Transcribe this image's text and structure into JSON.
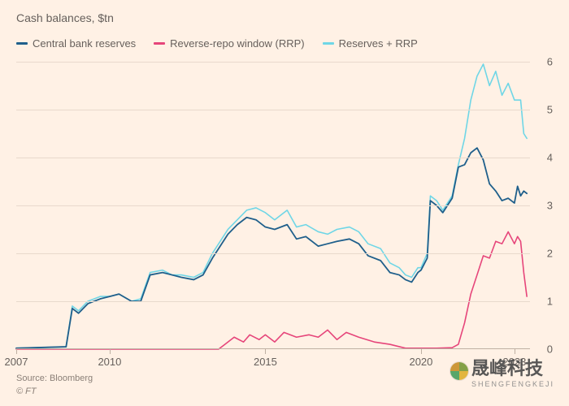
{
  "header": {
    "subtitle": "Cash balances, $tn"
  },
  "legend": {
    "items": [
      {
        "label": "Central bank reserves",
        "color": "#1f5f8b"
      },
      {
        "label": "Reverse-repo window (RRP)",
        "color": "#e6457a"
      },
      {
        "label": "Reserves + RRP",
        "color": "#6fd6e6"
      }
    ]
  },
  "chart": {
    "type": "line",
    "background_color": "#fff1e5",
    "grid_color": "#e8d9cc",
    "baseline_color": "#bfb0a3",
    "text_color": "#66605c",
    "font_family": "Arial, sans-serif",
    "label_fontsize": 13,
    "line_width": 1.6,
    "xlim": [
      2007,
      2023.5
    ],
    "ylim": [
      0,
      6
    ],
    "ytick_step": 1,
    "yticks": [
      0,
      1,
      2,
      3,
      4,
      5,
      6
    ],
    "xticks": [
      2007,
      2010,
      2015,
      2020,
      2023
    ],
    "series": [
      {
        "name": "reserves_plus_rrp",
        "color": "#6fd6e6",
        "width": 1.6,
        "data": [
          [
            2007,
            0.02
          ],
          [
            2008.6,
            0.05
          ],
          [
            2008.8,
            0.9
          ],
          [
            2009.0,
            0.8
          ],
          [
            2009.3,
            1.0
          ],
          [
            2009.7,
            1.1
          ],
          [
            2010.0,
            1.1
          ],
          [
            2010.3,
            1.15
          ],
          [
            2010.7,
            1.0
          ],
          [
            2011.0,
            1.05
          ],
          [
            2011.3,
            1.6
          ],
          [
            2011.7,
            1.65
          ],
          [
            2012.0,
            1.55
          ],
          [
            2012.3,
            1.55
          ],
          [
            2012.7,
            1.5
          ],
          [
            2013.0,
            1.6
          ],
          [
            2013.3,
            2.0
          ],
          [
            2013.5,
            2.2
          ],
          [
            2013.8,
            2.5
          ],
          [
            2014.1,
            2.7
          ],
          [
            2014.4,
            2.9
          ],
          [
            2014.7,
            2.95
          ],
          [
            2015.0,
            2.85
          ],
          [
            2015.3,
            2.7
          ],
          [
            2015.7,
            2.9
          ],
          [
            2016.0,
            2.55
          ],
          [
            2016.3,
            2.6
          ],
          [
            2016.7,
            2.45
          ],
          [
            2017.0,
            2.4
          ],
          [
            2017.3,
            2.5
          ],
          [
            2017.7,
            2.55
          ],
          [
            2018.0,
            2.45
          ],
          [
            2018.3,
            2.2
          ],
          [
            2018.7,
            2.1
          ],
          [
            2019.0,
            1.8
          ],
          [
            2019.3,
            1.7
          ],
          [
            2019.5,
            1.55
          ],
          [
            2019.7,
            1.5
          ],
          [
            2019.9,
            1.7
          ],
          [
            2020.0,
            1.7
          ],
          [
            2020.2,
            2.0
          ],
          [
            2020.3,
            3.2
          ],
          [
            2020.5,
            3.1
          ],
          [
            2020.7,
            2.9
          ],
          [
            2021.0,
            3.2
          ],
          [
            2021.2,
            3.85
          ],
          [
            2021.4,
            4.4
          ],
          [
            2021.6,
            5.2
          ],
          [
            2021.8,
            5.7
          ],
          [
            2022.0,
            5.95
          ],
          [
            2022.2,
            5.5
          ],
          [
            2022.4,
            5.8
          ],
          [
            2022.6,
            5.3
          ],
          [
            2022.8,
            5.55
          ],
          [
            2023.0,
            5.2
          ],
          [
            2023.2,
            5.2
          ],
          [
            2023.3,
            4.5
          ],
          [
            2023.4,
            4.4
          ]
        ]
      },
      {
        "name": "central_bank_reserves",
        "color": "#1f5f8b",
        "width": 1.8,
        "data": [
          [
            2007,
            0.02
          ],
          [
            2008.6,
            0.05
          ],
          [
            2008.8,
            0.85
          ],
          [
            2009.0,
            0.75
          ],
          [
            2009.3,
            0.95
          ],
          [
            2009.7,
            1.05
          ],
          [
            2010.0,
            1.1
          ],
          [
            2010.3,
            1.15
          ],
          [
            2010.7,
            1.0
          ],
          [
            2011.0,
            1.0
          ],
          [
            2011.3,
            1.55
          ],
          [
            2011.7,
            1.6
          ],
          [
            2012.0,
            1.55
          ],
          [
            2012.3,
            1.5
          ],
          [
            2012.7,
            1.45
          ],
          [
            2013.0,
            1.55
          ],
          [
            2013.3,
            1.9
          ],
          [
            2013.5,
            2.1
          ],
          [
            2013.8,
            2.4
          ],
          [
            2014.1,
            2.6
          ],
          [
            2014.4,
            2.75
          ],
          [
            2014.7,
            2.7
          ],
          [
            2015.0,
            2.55
          ],
          [
            2015.3,
            2.5
          ],
          [
            2015.7,
            2.6
          ],
          [
            2016.0,
            2.3
          ],
          [
            2016.3,
            2.35
          ],
          [
            2016.7,
            2.15
          ],
          [
            2017.0,
            2.2
          ],
          [
            2017.3,
            2.25
          ],
          [
            2017.7,
            2.3
          ],
          [
            2018.0,
            2.2
          ],
          [
            2018.3,
            1.95
          ],
          [
            2018.7,
            1.85
          ],
          [
            2019.0,
            1.6
          ],
          [
            2019.3,
            1.55
          ],
          [
            2019.5,
            1.45
          ],
          [
            2019.7,
            1.4
          ],
          [
            2019.9,
            1.6
          ],
          [
            2020.0,
            1.65
          ],
          [
            2020.2,
            1.9
          ],
          [
            2020.3,
            3.1
          ],
          [
            2020.5,
            3.0
          ],
          [
            2020.7,
            2.85
          ],
          [
            2021.0,
            3.15
          ],
          [
            2021.2,
            3.8
          ],
          [
            2021.4,
            3.85
          ],
          [
            2021.6,
            4.1
          ],
          [
            2021.8,
            4.2
          ],
          [
            2022.0,
            3.95
          ],
          [
            2022.2,
            3.45
          ],
          [
            2022.4,
            3.3
          ],
          [
            2022.6,
            3.1
          ],
          [
            2022.8,
            3.15
          ],
          [
            2023.0,
            3.05
          ],
          [
            2023.1,
            3.4
          ],
          [
            2023.2,
            3.2
          ],
          [
            2023.3,
            3.3
          ],
          [
            2023.4,
            3.25
          ]
        ]
      },
      {
        "name": "reverse_repo_rrp",
        "color": "#e6457a",
        "width": 1.6,
        "data": [
          [
            2007,
            0
          ],
          [
            2013.5,
            0
          ],
          [
            2013.7,
            0.1
          ],
          [
            2014.0,
            0.25
          ],
          [
            2014.3,
            0.15
          ],
          [
            2014.5,
            0.3
          ],
          [
            2014.8,
            0.2
          ],
          [
            2015.0,
            0.3
          ],
          [
            2015.3,
            0.15
          ],
          [
            2015.6,
            0.35
          ],
          [
            2016.0,
            0.25
          ],
          [
            2016.4,
            0.3
          ],
          [
            2016.7,
            0.25
          ],
          [
            2017.0,
            0.4
          ],
          [
            2017.3,
            0.2
          ],
          [
            2017.6,
            0.35
          ],
          [
            2018.0,
            0.25
          ],
          [
            2018.5,
            0.15
          ],
          [
            2019.0,
            0.1
          ],
          [
            2019.5,
            0.02
          ],
          [
            2020.0,
            0.02
          ],
          [
            2020.5,
            0.02
          ],
          [
            2021.0,
            0.03
          ],
          [
            2021.2,
            0.1
          ],
          [
            2021.4,
            0.55
          ],
          [
            2021.6,
            1.15
          ],
          [
            2021.8,
            1.55
          ],
          [
            2022.0,
            1.95
          ],
          [
            2022.2,
            1.9
          ],
          [
            2022.4,
            2.25
          ],
          [
            2022.6,
            2.2
          ],
          [
            2022.8,
            2.45
          ],
          [
            2023.0,
            2.2
          ],
          [
            2023.1,
            2.35
          ],
          [
            2023.2,
            2.25
          ],
          [
            2023.3,
            1.6
          ],
          [
            2023.4,
            1.1
          ]
        ]
      }
    ]
  },
  "footer": {
    "source": "Source: Bloomberg",
    "copyright": "© FT"
  },
  "watermark": {
    "text": "晟峰科技",
    "sub": "SHENGFENGKEJI"
  }
}
